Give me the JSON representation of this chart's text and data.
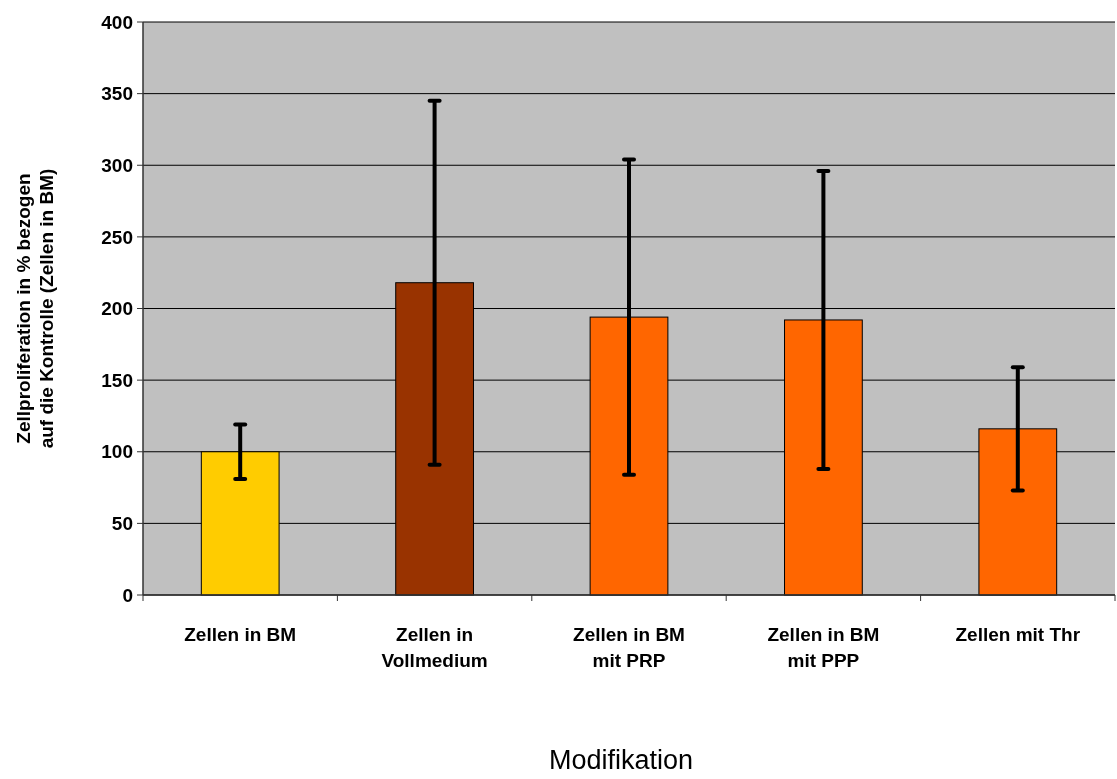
{
  "chart_data": {
    "type": "bar",
    "xlabel": "Modifikation",
    "ylabel": "Zellproliferation in % bezogen\nauf die Kontrolle (Zellen in BM)",
    "categories": [
      "Zellen in BM",
      "Zellen in\nVollmedium",
      "Zellen in BM\nmit PRP",
      "Zellen in BM\nmit PPP",
      "Zellen mit Thr"
    ],
    "values": [
      100,
      218,
      194,
      192,
      116
    ],
    "colors": [
      "#ffcc00",
      "#993300",
      "#ff6600",
      "#ff6600",
      "#ff6600"
    ],
    "errors": [
      [
        81,
        119
      ],
      [
        91,
        345
      ],
      [
        84,
        304
      ],
      [
        88,
        296
      ],
      [
        73,
        159
      ]
    ],
    "ylim": [
      0,
      400
    ],
    "yticks": [
      0,
      50,
      100,
      150,
      200,
      250,
      300,
      350,
      400
    ],
    "grid": "y"
  }
}
